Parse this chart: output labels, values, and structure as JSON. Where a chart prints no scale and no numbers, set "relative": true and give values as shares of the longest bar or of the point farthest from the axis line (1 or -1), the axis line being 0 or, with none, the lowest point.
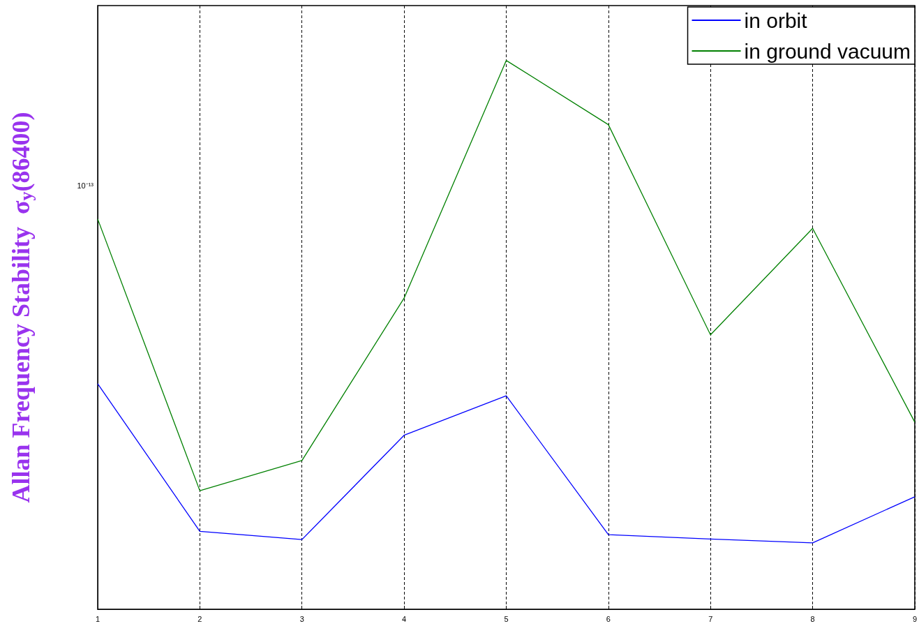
{
  "chart_data": {
    "type": "line",
    "relative": true,
    "ylabel": "Allan Frequency Stability  σ$_{y}$(86400)",
    "x": [
      1,
      2,
      3,
      4,
      5,
      6,
      7,
      8,
      9
    ],
    "series": [
      {
        "name": "in orbit",
        "color": "#0000ff",
        "values": [
          0.411,
          0.142,
          0.127,
          0.317,
          0.389,
          0.136,
          0.128,
          0.121,
          0.205
        ]
      },
      {
        "name": "in ground vacuum",
        "color": "#008000",
        "values": [
          0.711,
          0.216,
          0.271,
          0.567,
          1,
          0.883,
          0.5,
          0.694,
          0.341
        ]
      }
    ],
    "annotations": [
      "10⁻¹³"
    ],
    "xlim": [
      1,
      9
    ],
    "xticks": [
      1,
      2,
      3,
      4,
      5,
      6,
      7,
      8,
      9
    ],
    "grid": "x",
    "legend": "top right",
    "marker": "none",
    "line_style": "solid"
  }
}
